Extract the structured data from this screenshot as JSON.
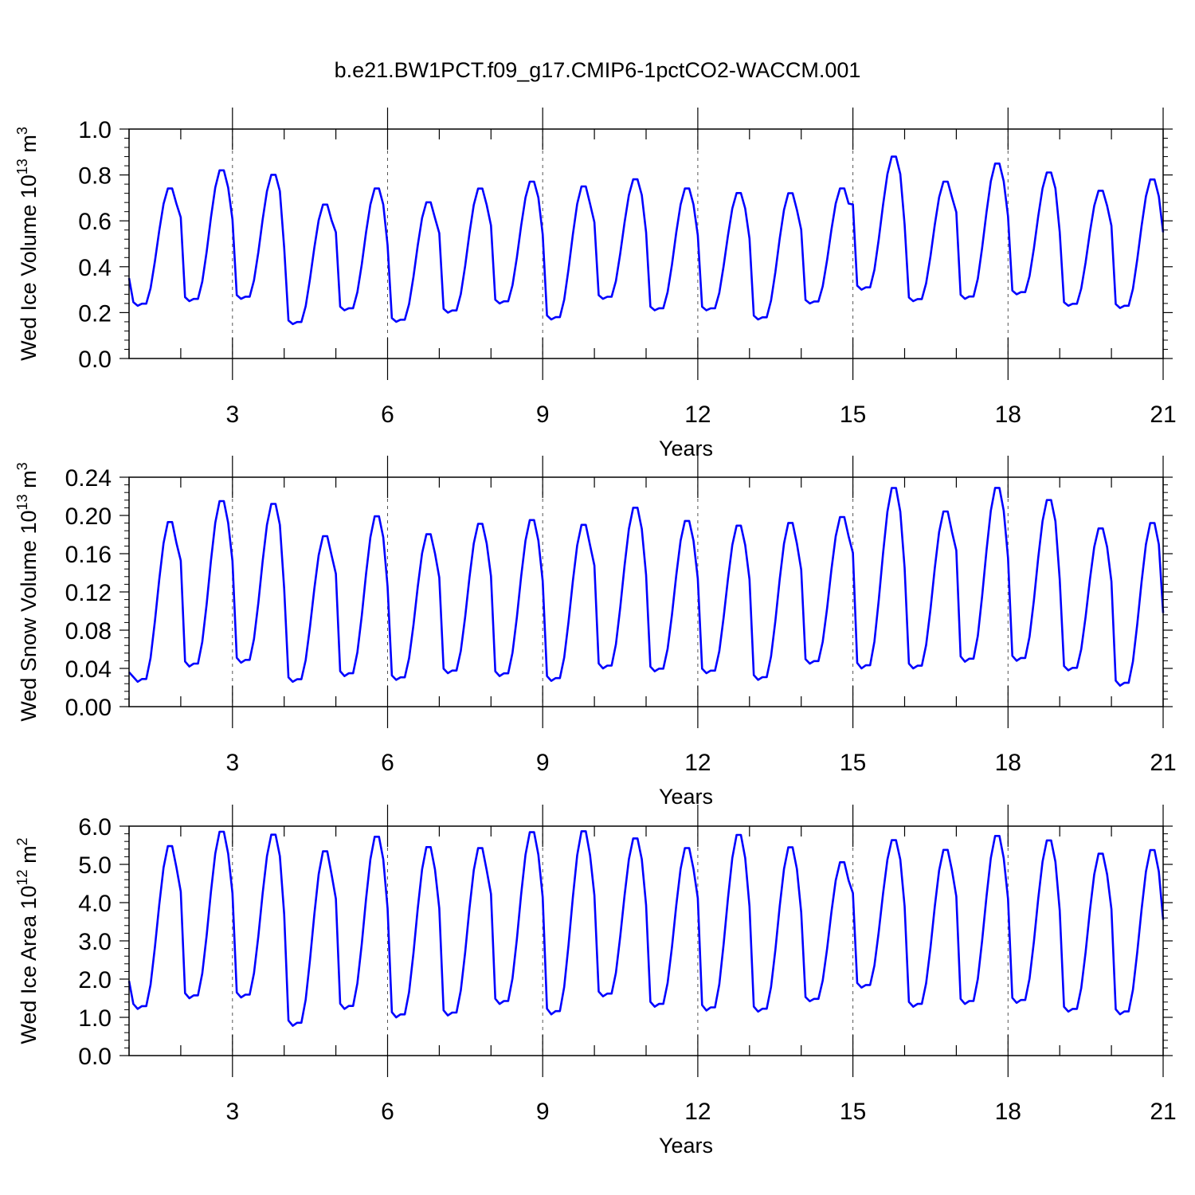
{
  "figure": {
    "title": "b.e21.BW1PCT.f09_g17.CMIP6-1pctCO2-WACCM.001"
  },
  "chart_data": [
    {
      "type": "line",
      "ylabel": "Wed Ice Volume",
      "ylabel_unit_base": "10",
      "ylabel_unit_exp": "13",
      "ylabel_unit_dim": "m",
      "ylabel_unit_dim_exp": "3",
      "xlabel": "Years",
      "xlim": [
        1,
        21
      ],
      "ylim": [
        0.0,
        1.0
      ],
      "xticks": [
        3,
        6,
        9,
        12,
        15,
        18,
        21
      ],
      "xtick_labels": [
        "3",
        "6",
        "9",
        "12",
        "15",
        "18",
        "21"
      ],
      "yticks": [
        0.0,
        0.2,
        0.4,
        0.6,
        0.8,
        1.0
      ],
      "ytick_labels": [
        "0.0",
        "0.2",
        "0.4",
        "0.6",
        "0.8",
        "1.0"
      ],
      "grid": "vertical dashed at labeled x ticks",
      "line_color": "#0000ff",
      "series": [
        {
          "seasonal_max": [
            0.75,
            0.83,
            0.81,
            0.68,
            0.75,
            0.69,
            0.75,
            0.78,
            0.76,
            0.79,
            0.75,
            0.73,
            0.73,
            0.75,
            0.89,
            0.78,
            0.86,
            0.82,
            0.74,
            0.79
          ],
          "seasonal_min": [
            0.23,
            0.25,
            0.26,
            0.15,
            0.21,
            0.16,
            0.2,
            0.24,
            0.17,
            0.26,
            0.21,
            0.21,
            0.17,
            0.24,
            0.3,
            0.25,
            0.26,
            0.28,
            0.23,
            0.22
          ],
          "start_value": 0.35,
          "end_value": 0.55
        }
      ]
    },
    {
      "type": "line",
      "ylabel": "Wed Snow Volume",
      "ylabel_unit_base": "10",
      "ylabel_unit_exp": "13",
      "ylabel_unit_dim": "m",
      "ylabel_unit_dim_exp": "3",
      "xlabel": "Years",
      "xlim": [
        1,
        21
      ],
      "ylim": [
        0.0,
        0.24
      ],
      "xticks": [
        3,
        6,
        9,
        12,
        15,
        18,
        21
      ],
      "xtick_labels": [
        "3",
        "6",
        "9",
        "12",
        "15",
        "18",
        "21"
      ],
      "yticks": [
        0.0,
        0.04,
        0.08,
        0.12,
        0.16,
        0.2,
        0.24
      ],
      "ytick_labels": [
        "0.00",
        "0.04",
        "0.08",
        "0.12",
        "0.16",
        "0.20",
        "0.24"
      ],
      "grid": "vertical dashed at labeled x ticks",
      "line_color": "#0000ff",
      "series": [
        {
          "seasonal_max": [
            0.196,
            0.218,
            0.215,
            0.181,
            0.202,
            0.183,
            0.194,
            0.198,
            0.193,
            0.211,
            0.197,
            0.192,
            0.195,
            0.201,
            0.232,
            0.207,
            0.232,
            0.219,
            0.189,
            0.195
          ],
          "seasonal_min": [
            0.026,
            0.042,
            0.046,
            0.026,
            0.032,
            0.028,
            0.035,
            0.032,
            0.027,
            0.04,
            0.037,
            0.035,
            0.028,
            0.045,
            0.04,
            0.04,
            0.047,
            0.048,
            0.038,
            0.022
          ],
          "start_value": 0.036,
          "end_value": 0.098
        }
      ]
    },
    {
      "type": "line",
      "ylabel": "Wed Ice Area",
      "ylabel_unit_base": "10",
      "ylabel_unit_exp": "12",
      "ylabel_unit_dim": "m",
      "ylabel_unit_dim_exp": "2",
      "xlabel": "Years",
      "xlim": [
        1,
        21
      ],
      "ylim": [
        0.0,
        6.0
      ],
      "xticks": [
        3,
        6,
        9,
        12,
        15,
        18,
        21
      ],
      "xtick_labels": [
        "3",
        "6",
        "9",
        "12",
        "15",
        "18",
        "21"
      ],
      "yticks": [
        0.0,
        1.0,
        2.0,
        3.0,
        4.0,
        5.0,
        6.0
      ],
      "ytick_labels": [
        "0.0",
        "1.0",
        "2.0",
        "3.0",
        "4.0",
        "5.0",
        "6.0"
      ],
      "grid": "vertical dashed at labeled x ticks",
      "line_color": "#0000ff",
      "series": [
        {
          "seasonal_max": [
            5.55,
            5.93,
            5.85,
            5.42,
            5.8,
            5.53,
            5.5,
            5.92,
            5.95,
            5.75,
            5.5,
            5.85,
            5.52,
            5.12,
            5.7,
            5.45,
            5.82,
            5.7,
            5.35,
            5.45
          ],
          "seasonal_min": [
            1.22,
            1.5,
            1.52,
            0.78,
            1.22,
            1.0,
            1.05,
            1.35,
            1.08,
            1.55,
            1.28,
            1.18,
            1.15,
            1.42,
            1.78,
            1.28,
            1.35,
            1.38,
            1.15,
            1.08
          ],
          "start_value": 1.95,
          "end_value": 3.55
        }
      ]
    }
  ]
}
